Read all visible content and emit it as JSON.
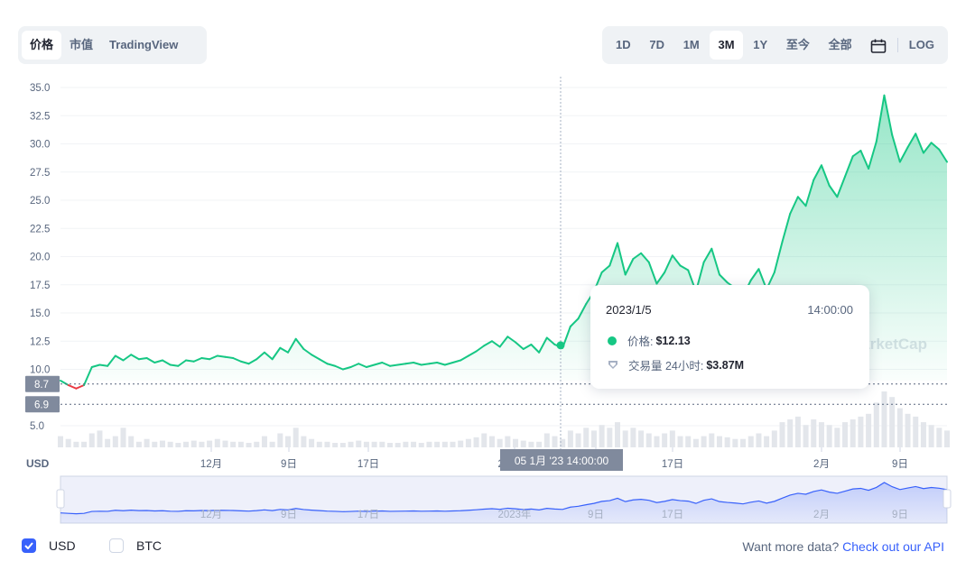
{
  "tabs_left": [
    {
      "label": "价格",
      "active": true
    },
    {
      "label": "市值",
      "active": false
    },
    {
      "label": "TradingView",
      "active": false
    }
  ],
  "ranges": [
    {
      "label": "1D",
      "active": false
    },
    {
      "label": "7D",
      "active": false
    },
    {
      "label": "1M",
      "active": false
    },
    {
      "label": "3M",
      "active": true
    },
    {
      "label": "1Y",
      "active": false
    },
    {
      "label": "至今",
      "active": false
    },
    {
      "label": "全部",
      "active": false
    }
  ],
  "calendar_icon": "calendar-icon",
  "log_label": "LOG",
  "tooltip": {
    "date": "2023/1/5",
    "time": "14:00:00",
    "price_label": "价格:",
    "price_value": "$12.13",
    "volume_label": "交易量 24小时:",
    "volume_value": "$3.87M"
  },
  "crosshair_label": "05 1月 '23   14:00:00",
  "watermark": "CoinMarketCap",
  "currency_label": "USD",
  "footer": {
    "usd_label": "USD",
    "usd_checked": true,
    "btc_label": "BTC",
    "btc_checked": false,
    "api_text": "Want more data?",
    "api_link": "Check out our API"
  },
  "colors": {
    "up": "#16c784",
    "down": "#ea3943",
    "accent": "#3861fb",
    "text": "#58667e"
  },
  "chart_data": {
    "type": "line",
    "title": "",
    "ylabel": "",
    "y_ticks": [
      "35.0",
      "32.5",
      "30.0",
      "27.5",
      "25.0",
      "22.5",
      "20.0",
      "17.5",
      "15.0",
      "12.5",
      "10.0",
      "5.0"
    ],
    "ylim": [
      5.0,
      35.0
    ],
    "x_ticks": [
      "12月",
      "9日",
      "17日",
      "2023年",
      "9日",
      "17日",
      "2月",
      "9日"
    ],
    "navigator_ticks": [
      "12月",
      "9日",
      "17日",
      "2023年",
      "9日",
      "17日",
      "2月",
      "9日"
    ],
    "price_markers": [
      8.7,
      6.9
    ],
    "crosshair": {
      "label": "05 1月 '23 14:00:00",
      "price": 12.13
    },
    "series": [
      {
        "values": [
          9.0,
          8.6,
          8.3,
          8.6,
          10.2,
          10.4,
          10.3,
          11.2,
          10.8,
          11.3,
          10.9,
          11.0,
          10.6,
          10.8,
          10.4,
          10.3,
          10.8,
          10.7,
          11.0,
          10.9,
          11.2,
          11.1,
          11.0,
          10.7,
          10.5,
          10.9,
          11.5,
          10.9,
          11.9,
          11.5,
          12.7,
          11.8,
          11.3,
          10.9,
          10.5,
          10.3,
          10.0,
          10.2,
          10.5,
          10.2,
          10.4,
          10.6,
          10.3,
          10.4,
          10.5,
          10.6,
          10.4,
          10.5,
          10.6,
          10.4,
          10.6,
          10.8,
          11.2,
          11.6,
          12.1,
          12.5,
          12.0,
          12.9,
          12.4,
          11.8,
          12.2,
          11.5,
          12.8,
          12.2,
          11.9,
          13.8,
          14.5,
          15.8,
          16.9,
          18.6,
          19.2,
          21.2,
          18.4,
          19.8,
          20.3,
          19.5,
          17.6,
          18.6,
          20.1,
          19.2,
          18.8,
          16.9,
          19.5,
          20.7,
          18.4,
          17.7,
          17.2,
          16.5,
          17.9,
          18.9,
          17.1,
          18.6,
          21.3,
          23.8,
          25.3,
          24.5,
          26.8,
          28.1,
          26.3,
          25.3,
          27.1,
          28.9,
          29.4,
          27.8,
          30.2,
          34.3,
          30.8,
          28.4,
          29.7,
          30.9,
          29.2,
          30.1,
          29.5,
          28.4
        ]
      }
    ],
    "volume_relative": [
      0.2,
      0.15,
      0.1,
      0.1,
      0.25,
      0.3,
      0.15,
      0.2,
      0.35,
      0.2,
      0.1,
      0.15,
      0.1,
      0.12,
      0.1,
      0.08,
      0.1,
      0.12,
      0.1,
      0.12,
      0.15,
      0.12,
      0.1,
      0.1,
      0.08,
      0.1,
      0.2,
      0.1,
      0.25,
      0.2,
      0.35,
      0.2,
      0.15,
      0.1,
      0.1,
      0.08,
      0.08,
      0.1,
      0.12,
      0.1,
      0.1,
      0.1,
      0.08,
      0.08,
      0.1,
      0.1,
      0.08,
      0.1,
      0.1,
      0.1,
      0.1,
      0.12,
      0.15,
      0.18,
      0.25,
      0.2,
      0.15,
      0.2,
      0.15,
      0.12,
      0.1,
      0.1,
      0.25,
      0.2,
      0.15,
      0.3,
      0.25,
      0.35,
      0.3,
      0.4,
      0.35,
      0.45,
      0.3,
      0.35,
      0.3,
      0.25,
      0.2,
      0.25,
      0.3,
      0.2,
      0.2,
      0.15,
      0.2,
      0.25,
      0.2,
      0.18,
      0.15,
      0.15,
      0.2,
      0.25,
      0.2,
      0.3,
      0.45,
      0.5,
      0.55,
      0.4,
      0.5,
      0.45,
      0.4,
      0.35,
      0.45,
      0.5,
      0.55,
      0.6,
      0.8,
      1.0,
      0.9,
      0.7,
      0.6,
      0.55,
      0.45,
      0.4,
      0.35,
      0.3
    ]
  }
}
